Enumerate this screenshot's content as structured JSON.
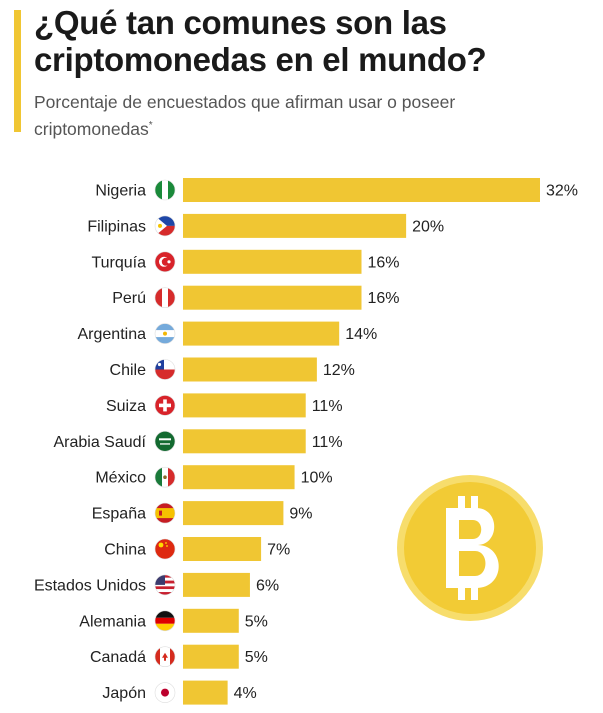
{
  "header": {
    "title": "¿Qué tan comunes son las criptomonedas en el mundo?",
    "subtitle": "Porcentaje de encuestados que afirman usar o poseer criptomonedas",
    "subtitle_mark": "*"
  },
  "colors": {
    "bar": "#f0c633",
    "accent": "#f0c633",
    "coin": "#f2cb35",
    "coin_border": "#f7dd6c"
  },
  "icons": {
    "coin": "bitcoin-coin-icon",
    "flags": "country-flag-icon"
  },
  "chart_data": {
    "type": "bar",
    "orientation": "horizontal",
    "title": "¿Qué tan comunes son las criptomonedas en el mundo?",
    "subtitle": "Porcentaje de encuestados que afirman usar o poseer criptomonedas*",
    "categories": [
      "Nigeria",
      "Filipinas",
      "Turquía",
      "Perú",
      "Argentina",
      "Chile",
      "Suiza",
      "Arabia Saudí",
      "México",
      "España",
      "China",
      "Estados Unidos",
      "Alemania",
      "Canadá",
      "Japón"
    ],
    "values": [
      32,
      20,
      16,
      16,
      14,
      12,
      11,
      11,
      10,
      9,
      7,
      6,
      5,
      5,
      4
    ],
    "value_labels": [
      "32%",
      "20%",
      "16%",
      "16%",
      "14%",
      "12%",
      "11%",
      "11%",
      "10%",
      "9%",
      "7%",
      "6%",
      "5%",
      "5%",
      "4%"
    ],
    "unit": "%",
    "xlim": [
      0,
      32
    ],
    "grid": false,
    "legend": "none"
  }
}
